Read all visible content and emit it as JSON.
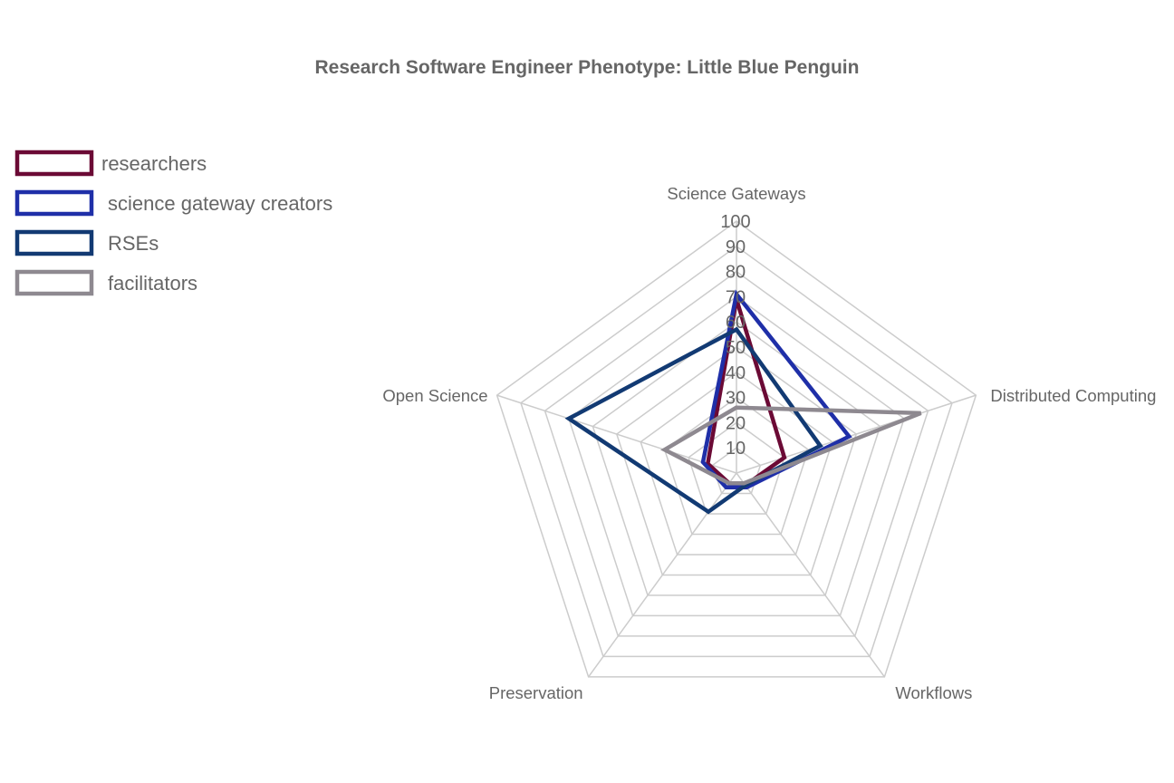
{
  "chart_data": {
    "type": "radar",
    "title": "Research Software Engineer Phenotype: Little Blue Penguin",
    "axes": [
      "Science Gateways",
      "Distributed Computing",
      "Workflows",
      "Preservation",
      "Open Science"
    ],
    "r_range": [
      0,
      100
    ],
    "r_ticks": [
      10,
      20,
      30,
      40,
      50,
      60,
      70,
      80,
      90,
      100
    ],
    "grid": true,
    "legend_position": "top-left",
    "series": [
      {
        "name": "researchers",
        "color": "#6b0a35",
        "values": [
          69,
          20,
          6,
          5,
          12
        ]
      },
      {
        "name": "science gateway creators",
        "color": "#1f2fa8",
        "values": [
          71,
          47,
          7,
          7,
          14
        ]
      },
      {
        "name": "RSEs",
        "color": "#123a73",
        "values": [
          57,
          35,
          6,
          19,
          70
        ]
      },
      {
        "name": "facilitators",
        "color": "#8e8990",
        "values": [
          26,
          77,
          5,
          5,
          30
        ]
      }
    ]
  }
}
